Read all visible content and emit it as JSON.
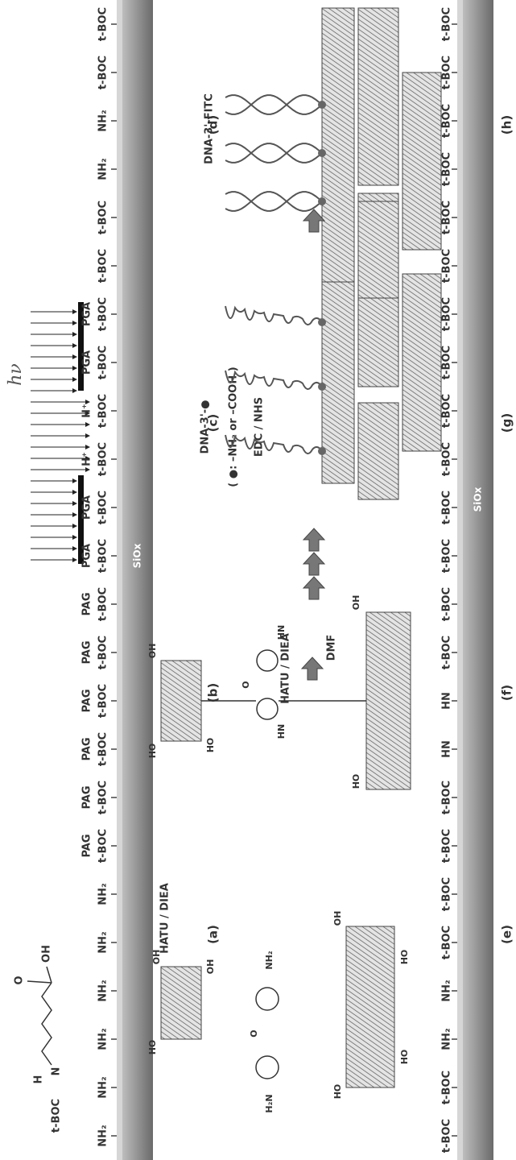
{
  "light": "hν",
  "top_bar_label": "SiOx",
  "bottom_bar_label": "SiOx",
  "linker": {
    "protect": "t-BOC",
    "h": "H",
    "n": "N",
    "o": "O",
    "oh": "OH",
    "reagent": "HATU / DIEA"
  },
  "coupling": {
    "reagent": "HATU / DIEA",
    "solvent": "DMF"
  },
  "dna_step": {
    "line1": "DNA-3'-●",
    "line2": "( ●: –NH₂ or –COOH )",
    "line3": "EDC / NHS"
  },
  "dna_final": "DNA-3'-FITC",
  "molecule_labels": [
    "HO",
    "OH",
    "OH",
    "H₂N",
    "O",
    "NH₂",
    "HO",
    "HO",
    "OH",
    "HO",
    "HO",
    "OH",
    "HO",
    "HN",
    "O",
    "HN",
    "HO",
    "OH"
  ],
  "top_panels": [
    {
      "label": "(a)",
      "sites": [
        [
          "NH₂"
        ],
        [
          "NH₂"
        ],
        [
          "NH₂"
        ],
        [
          "NH₂"
        ],
        [
          "NH₂"
        ],
        [
          "NH₂"
        ]
      ]
    },
    {
      "label": "(b)",
      "sites": [
        [
          "PAG",
          "t-BOC"
        ],
        [
          "PAG",
          "t-BOC"
        ],
        [
          "PAG",
          "t-BOC"
        ],
        [
          "PAG",
          "t-BOC"
        ],
        [
          "PAG",
          "t-BOC"
        ],
        [
          "PAG",
          "t-BOC"
        ]
      ]
    },
    {
      "label": "(c)",
      "sites": [
        [
          "PGA",
          "t-BOC"
        ],
        [
          "PGA",
          "t-BOC"
        ],
        [
          "H⁺",
          "t-BOC"
        ],
        [
          "H⁺",
          "t-BOC"
        ],
        [
          "PGA",
          "t-BOC"
        ],
        [
          "PGA",
          "t-BOC"
        ]
      ]
    },
    {
      "label": "(d)",
      "sites": [
        [
          "t-BOC"
        ],
        [
          "t-BOC"
        ],
        [
          "NH₂"
        ],
        [
          "NH₂"
        ],
        [
          "t-BOC"
        ],
        [
          "t-BOC"
        ]
      ]
    }
  ],
  "bottom_panels": [
    {
      "label": "(e)",
      "sites": [
        [
          "t-BOC"
        ],
        [
          "t-BOC"
        ],
        [
          "NH₂"
        ],
        [
          "NH₂"
        ],
        [
          "t-BOC"
        ],
        [
          "t-BOC"
        ]
      ]
    },
    {
      "label": "(f)",
      "sites": [
        [
          "t-BOC"
        ],
        [
          "t-BOC"
        ],
        [
          "HN"
        ],
        [
          "HN"
        ],
        [
          "t-BOC"
        ],
        [
          "t-BOC"
        ]
      ]
    },
    {
      "label": "(g)",
      "sites": [
        [
          "t-BOC"
        ],
        [
          "t-BOC"
        ],
        [
          "t-BOC"
        ],
        [
          "t-BOC"
        ],
        [
          "t-BOC"
        ],
        [
          "t-BOC"
        ]
      ]
    },
    {
      "label": "(h)",
      "sites": [
        [
          "t-BOC"
        ],
        [
          "t-BOC"
        ],
        [
          "t-BOC"
        ],
        [
          "t-BOC"
        ],
        [
          "t-BOC"
        ],
        [
          "t-BOC"
        ]
      ]
    }
  ]
}
